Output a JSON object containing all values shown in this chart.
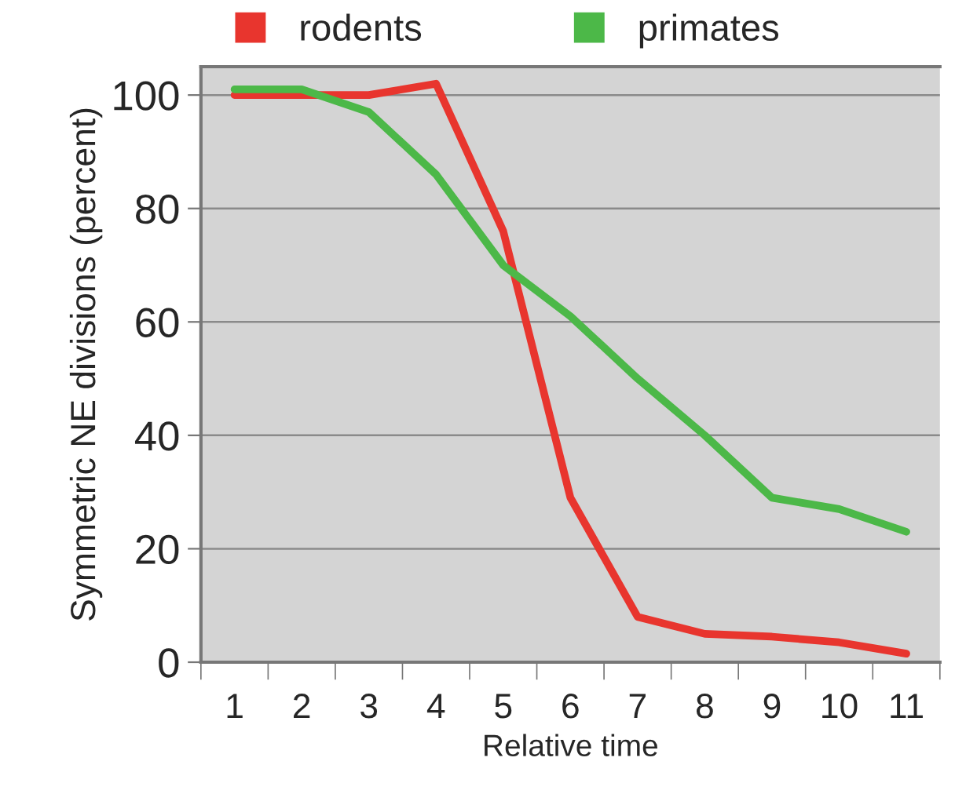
{
  "chart_data": {
    "type": "line",
    "xlabel": "Relative time",
    "ylabel": "Symmetric NE divisions (percent)",
    "categories": [
      "1",
      "2",
      "3",
      "4",
      "5",
      "6",
      "7",
      "8",
      "9",
      "10",
      "11"
    ],
    "series": [
      {
        "name": "rodents",
        "color": "#e8352e",
        "values": [
          100,
          100,
          100,
          102,
          76,
          29,
          8,
          5,
          4.5,
          3.5,
          1.5
        ]
      },
      {
        "name": "primates",
        "color": "#4cb848",
        "values": [
          101,
          101,
          97,
          86,
          70,
          61,
          50,
          40,
          29,
          27,
          23
        ]
      }
    ],
    "ylim": [
      0,
      105
    ],
    "yticks": [
      0,
      20,
      40,
      60,
      80,
      100
    ],
    "grid": "y",
    "legend": "top",
    "marker": "none",
    "line_style": "solid"
  }
}
